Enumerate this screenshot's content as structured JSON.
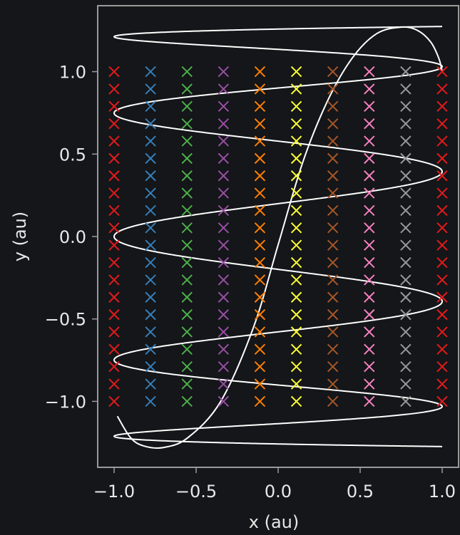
{
  "chart_data": {
    "type": "line",
    "xlabel": "x (au)",
    "ylabel": "y (au)",
    "xlim": [
      -1.1,
      1.1
    ],
    "ylim": [
      -1.4,
      1.4
    ],
    "xticks": [
      {
        "value": -1.0,
        "label": "−1.0"
      },
      {
        "value": -0.5,
        "label": "−0.5"
      },
      {
        "value": 0.0,
        "label": "0.0"
      },
      {
        "value": 0.5,
        "label": "0.5"
      },
      {
        "value": 1.0,
        "label": "1.0"
      }
    ],
    "yticks": [
      {
        "value": 1.0,
        "label": "1.0"
      },
      {
        "value": 0.5,
        "label": "0.5"
      },
      {
        "value": 0.0,
        "label": "0.0"
      },
      {
        "value": -0.5,
        "label": "−0.5"
      },
      {
        "value": -1.0,
        "label": "−1.0"
      }
    ],
    "grid": false,
    "legend": "none",
    "background_color": "#141619",
    "axes_color": "#9a9a9a",
    "curve_color": "#ffffff",
    "marker": "x",
    "marker_columns": [
      {
        "x": -1.0,
        "color": "#e41a1c"
      },
      {
        "x": -0.7778,
        "color": "#377eb8"
      },
      {
        "x": -0.5556,
        "color": "#4daf4a"
      },
      {
        "x": -0.3333,
        "color": "#984ea3"
      },
      {
        "x": -0.1111,
        "color": "#ff7f00"
      },
      {
        "x": 0.1111,
        "color": "#ffff33"
      },
      {
        "x": 0.3333,
        "color": "#a65628"
      },
      {
        "x": 0.5556,
        "color": "#f781bf"
      },
      {
        "x": 0.7778,
        "color": "#999999"
      },
      {
        "x": 1.0,
        "color": "#e41a1c"
      }
    ],
    "marker_y_values": [
      -1.0,
      -0.8947,
      -0.7895,
      -0.6842,
      -0.5789,
      -0.4737,
      -0.3684,
      -0.2632,
      -0.1579,
      -0.0526,
      0.0526,
      0.1579,
      0.2632,
      0.3684,
      0.4737,
      0.5789,
      0.6842,
      0.7895,
      0.8947,
      1.0
    ],
    "oscillating_curve": {
      "equation": "x = cos(10*pi*t), y = -1.274*cos(pi*t)",
      "t_range": [
        0,
        1
      ],
      "points": 2000
    },
    "smooth_curve": {
      "equation": "y = 1.274*sin(pi*(x+1)/1.8 - pi/2) approx",
      "x_range": [
        -0.98,
        1.0
      ],
      "samples": [
        [
          -0.98,
          -1.09
        ],
        [
          -0.9,
          -1.22
        ],
        [
          -0.82,
          -1.27
        ],
        [
          -0.7,
          -1.28
        ],
        [
          -0.55,
          -1.22
        ],
        [
          -0.35,
          -1.0
        ],
        [
          -0.15,
          -0.55
        ],
        [
          0.0,
          -0.05
        ],
        [
          0.15,
          0.45
        ],
        [
          0.3,
          0.82
        ],
        [
          0.45,
          1.08
        ],
        [
          0.6,
          1.23
        ],
        [
          0.75,
          1.27
        ],
        [
          0.85,
          1.25
        ],
        [
          0.93,
          1.18
        ],
        [
          0.98,
          1.08
        ],
        [
          1.0,
          1.0
        ]
      ]
    }
  }
}
